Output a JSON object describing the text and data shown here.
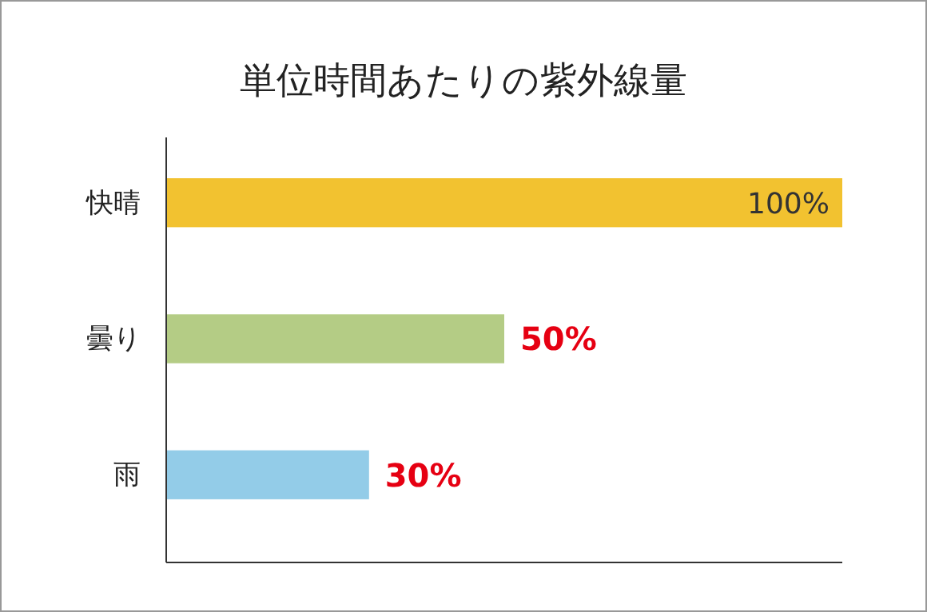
{
  "chart_data": {
    "type": "bar",
    "orientation": "horizontal",
    "title": "単位時間あたりの紫外線量",
    "categories": [
      "快晴",
      "曇り",
      "雨"
    ],
    "values": [
      100,
      50,
      30
    ],
    "colors": [
      "#f2c230",
      "#b4cc85",
      "#93cce8"
    ],
    "value_labels": [
      "100%",
      "50%",
      "30%"
    ],
    "xlim": [
      0,
      100
    ],
    "tick_labels": "y"
  }
}
